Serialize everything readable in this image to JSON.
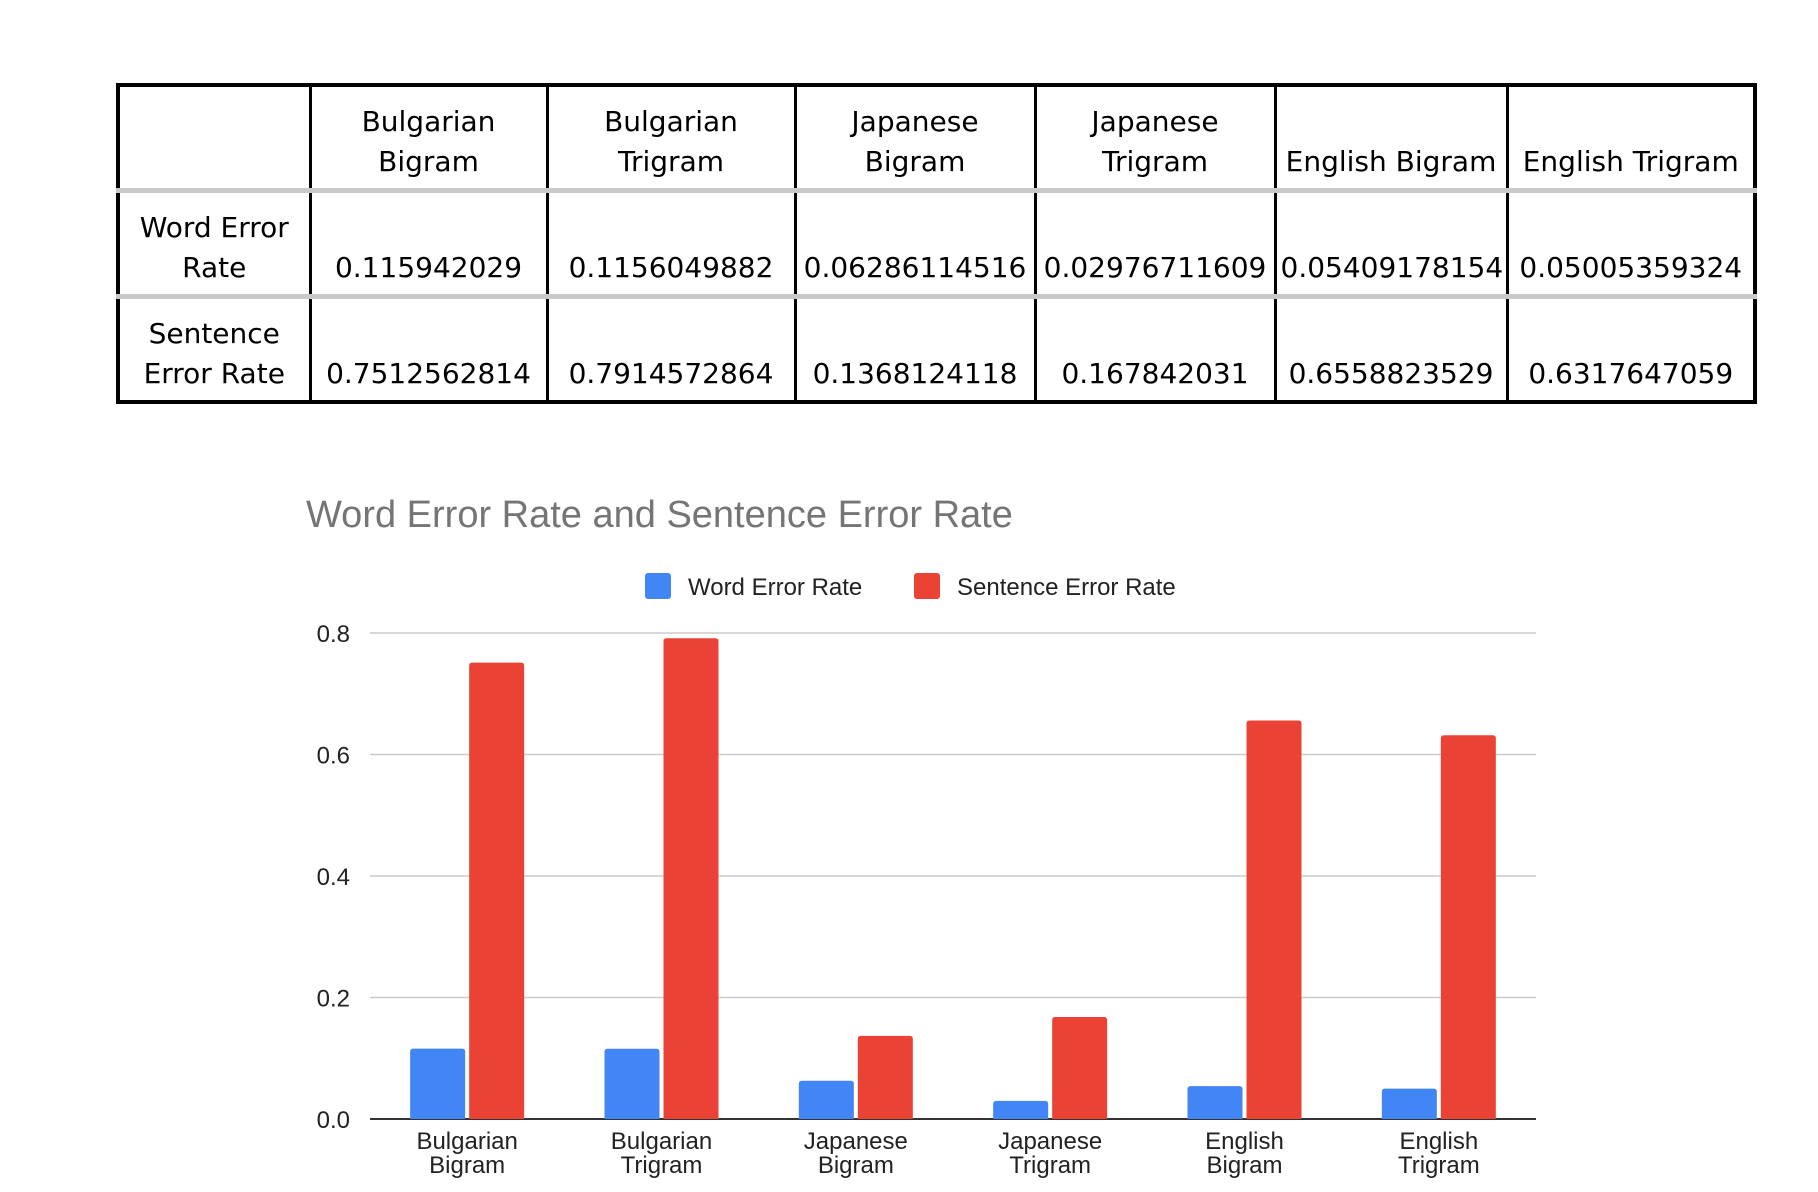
{
  "table": {
    "headers": [
      "",
      "Bulgarian Bigram",
      "Bulgarian Trigram",
      "Japanese Bigram",
      "Japanese Trigram",
      "English Bigram",
      "English Trigram"
    ],
    "rows": [
      {
        "label": "Word Error Rate",
        "cells": [
          "0.115942029",
          "0.1156049882",
          "0.06286114516",
          "0.02976711609",
          "0.05409178154",
          "0.05005359324"
        ]
      },
      {
        "label": "Sentence Error Rate",
        "cells": [
          "0.7512562814",
          "0.7914572864",
          "0.1368124118",
          "0.167842031",
          "0.6558823529",
          "0.6317647059"
        ]
      }
    ]
  },
  "chart_data": {
    "type": "bar",
    "title": "Word Error Rate and Sentence Error Rate",
    "xlabel": "",
    "ylabel": "",
    "categories": [
      "Bulgarian Bigram",
      "Bulgarian Trigram",
      "Japanese Bigram",
      "Japanese Trigram",
      "English Bigram",
      "English Trigram"
    ],
    "series": [
      {
        "name": "Word Error Rate",
        "color": "#4285f4",
        "values": [
          0.115942029,
          0.1156049882,
          0.06286114516,
          0.02976711609,
          0.05409178154,
          0.05005359324
        ]
      },
      {
        "name": "Sentence Error Rate",
        "color": "#ea4335",
        "values": [
          0.7512562814,
          0.7914572864,
          0.1368124118,
          0.167842031,
          0.6558823529,
          0.6317647059
        ]
      }
    ],
    "ylim": [
      0,
      0.8
    ],
    "yticks": [
      "0.0",
      "0.2",
      "0.4",
      "0.6",
      "0.8"
    ],
    "grid": true,
    "legend": "top-center"
  }
}
